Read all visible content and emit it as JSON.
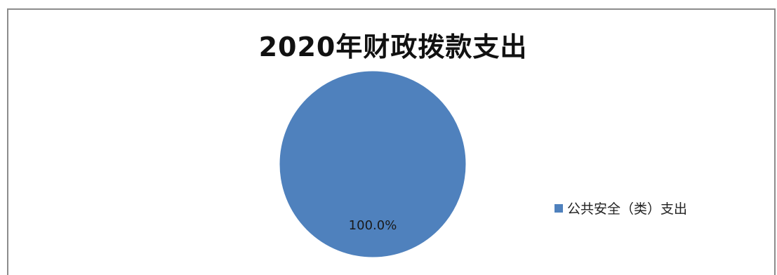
{
  "chart_data": {
    "type": "pie",
    "title": "2020年财政拨款支出",
    "categories": [
      "公共安全（类）支出"
    ],
    "values": [
      100.0
    ],
    "data_labels": [
      "100.0%"
    ],
    "colors": [
      "#4f81bd"
    ],
    "legend_position": "right"
  }
}
